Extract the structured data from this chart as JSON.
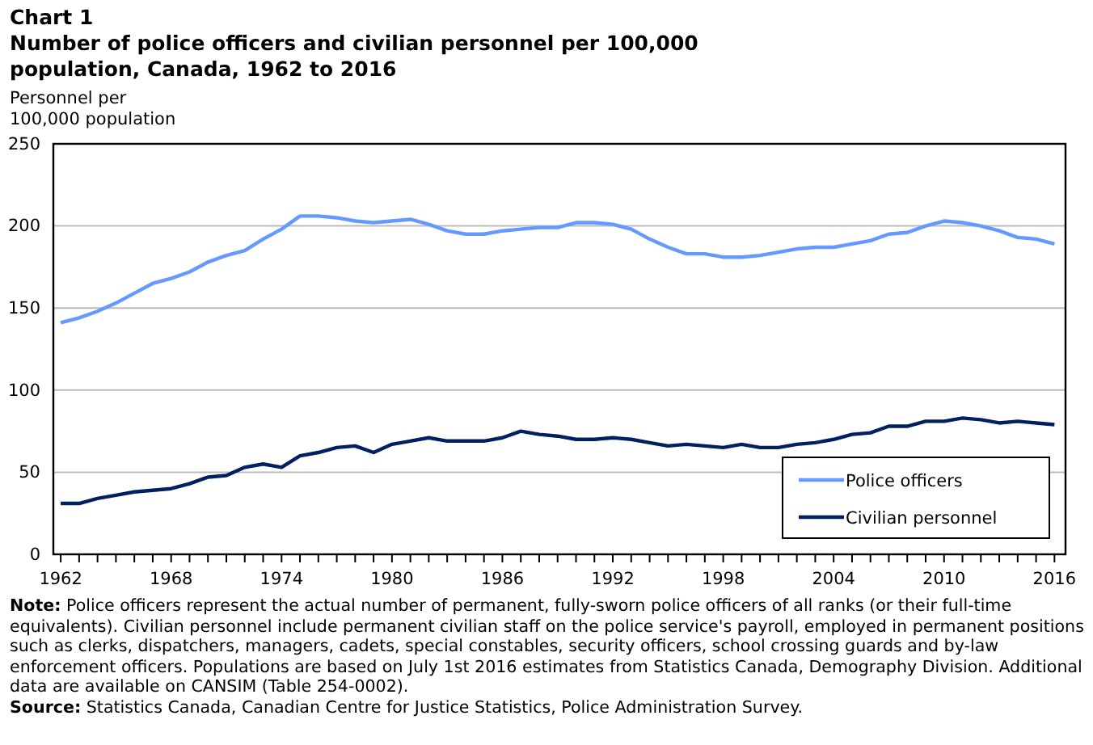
{
  "chart_data": {
    "type": "line",
    "title": "Chart 1",
    "subtitle": "Number of police officers and civilian personnel per 100,000 population, Canada, 1962 to 2016",
    "ylabel": "Personnel per 100,000 population",
    "x": [
      1962,
      1963,
      1964,
      1965,
      1966,
      1967,
      1968,
      1969,
      1970,
      1971,
      1972,
      1973,
      1974,
      1975,
      1976,
      1977,
      1978,
      1979,
      1980,
      1981,
      1982,
      1983,
      1984,
      1985,
      1986,
      1987,
      1988,
      1989,
      1990,
      1991,
      1992,
      1993,
      1994,
      1995,
      1996,
      1997,
      1998,
      1999,
      2000,
      2001,
      2002,
      2003,
      2004,
      2005,
      2006,
      2007,
      2008,
      2009,
      2010,
      2011,
      2012,
      2013,
      2014,
      2015,
      2016
    ],
    "series": [
      {
        "name": "Police officers",
        "color": "#6699ff",
        "values": [
          141,
          144,
          148,
          153,
          159,
          165,
          168,
          172,
          178,
          182,
          185,
          192,
          198,
          206,
          206,
          205,
          203,
          202,
          203,
          204,
          201,
          197,
          195,
          195,
          197,
          198,
          199,
          199,
          202,
          202,
          201,
          198,
          192,
          187,
          183,
          183,
          181,
          181,
          182,
          184,
          186,
          187,
          187,
          189,
          191,
          195,
          196,
          200,
          203,
          202,
          200,
          197,
          193,
          192,
          189
        ]
      },
      {
        "name": "Civilian personnel",
        "color": "#002060",
        "values": [
          31,
          31,
          34,
          36,
          38,
          39,
          40,
          43,
          47,
          48,
          53,
          55,
          53,
          60,
          62,
          65,
          66,
          62,
          67,
          69,
          71,
          69,
          69,
          69,
          71,
          75,
          73,
          72,
          70,
          70,
          71,
          70,
          68,
          66,
          67,
          66,
          65,
          67,
          65,
          65,
          67,
          68,
          70,
          73,
          74,
          78,
          78,
          81,
          81,
          83,
          82,
          80,
          81,
          80,
          79
        ]
      }
    ],
    "xlim": [
      1961.6,
      2016.6
    ],
    "xticks": [
      1962,
      {
        "value": 1963,
        "label": null
      },
      {
        "value": 1964,
        "label": null
      },
      {
        "value": 1965,
        "label": null
      },
      {
        "value": 1966,
        "label": null
      },
      {
        "value": 1967,
        "label": null
      },
      1968,
      {
        "value": 1969,
        "label": null
      },
      {
        "value": 1970,
        "label": null
      },
      {
        "value": 1971,
        "label": null
      },
      {
        "value": 1972,
        "label": null
      },
      {
        "value": 1973,
        "label": null
      },
      1974,
      {
        "value": 1975,
        "label": null
      },
      {
        "value": 1976,
        "label": null
      },
      {
        "value": 1977,
        "label": null
      },
      {
        "value": 1978,
        "label": null
      },
      {
        "value": 1979,
        "label": null
      },
      1980,
      {
        "value": 1981,
        "label": null
      },
      {
        "value": 1982,
        "label": null
      },
      {
        "value": 1983,
        "label": null
      },
      {
        "value": 1984,
        "label": null
      },
      {
        "value": 1985,
        "label": null
      },
      1986,
      {
        "value": 1987,
        "label": null
      },
      {
        "value": 1988,
        "label": null
      },
      {
        "value": 1989,
        "label": null
      },
      {
        "value": 1990,
        "label": null
      },
      {
        "value": 1991,
        "label": null
      },
      1992,
      {
        "value": 1993,
        "label": null
      },
      {
        "value": 1994,
        "label": null
      },
      {
        "value": 1995,
        "label": null
      },
      {
        "value": 1996,
        "label": null
      },
      {
        "value": 1997,
        "label": null
      },
      1998,
      {
        "value": 1999,
        "label": null
      },
      {
        "value": 2000,
        "label": null
      },
      {
        "value": 2001,
        "label": null
      },
      {
        "value": 2002,
        "label": null
      },
      {
        "value": 2003,
        "label": null
      },
      2004,
      {
        "value": 2005,
        "label": null
      },
      {
        "value": 2006,
        "label": null
      },
      {
        "value": 2007,
        "label": null
      },
      {
        "value": 2008,
        "label": null
      },
      {
        "value": 2009,
        "label": null
      },
      2010,
      {
        "value": 2011,
        "label": null
      },
      {
        "value": 2012,
        "label": null
      },
      {
        "value": 2013,
        "label": null
      },
      {
        "value": 2014,
        "label": null
      },
      {
        "value": 2015,
        "label": null
      },
      2016
    ],
    "ylim": [
      0,
      250
    ],
    "yticks": [
      0,
      50,
      100,
      150,
      200,
      250
    ],
    "grid": "y",
    "legend": "bottom right",
    "marker": "none",
    "line_style": "solid",
    "annotations": [
      "Note: Police officers represent the actual number of permanent, fully-sworn police officers of all ranks (or their full-time equivalents). Civilian personnel include permanent civilian staff on the police service's payroll, employed in permanent positions such as clerks, dispatchers, managers, cadets, special constables, security officers, school crossing guards and by-law enforcement officers. Populations are based on July 1st 2016 estimates from Statistics Canada, Demography Division. Additional data are available on CANSIM (Table 254-0002).",
      "Source: Statistics Canada, Canadian Centre for Justice Statistics, Police Administration Survey."
    ]
  }
}
